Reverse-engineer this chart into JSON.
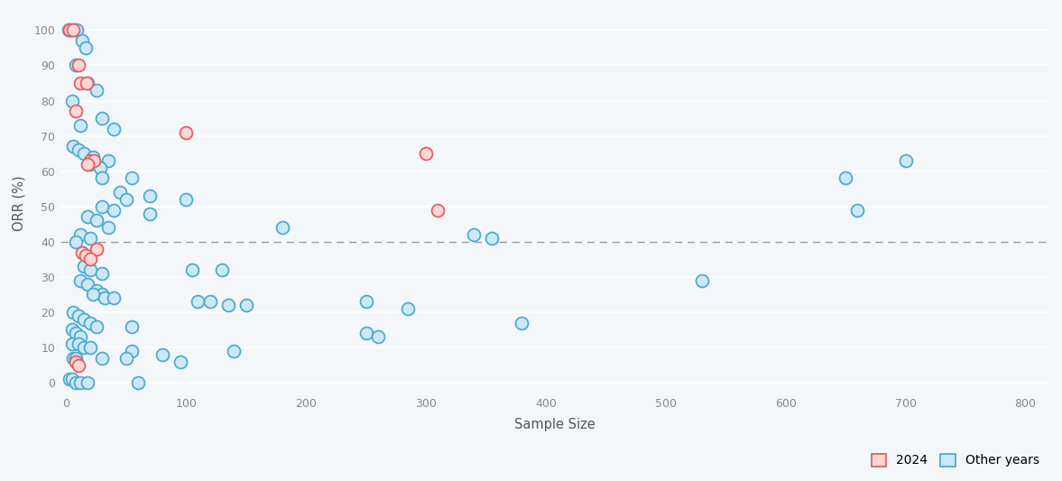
{
  "title": "",
  "xlabel": "Sample Size",
  "ylabel": "ORR (%)",
  "xlim": [
    -5,
    820
  ],
  "ylim": [
    -3,
    105
  ],
  "xticks": [
    0,
    100,
    200,
    300,
    400,
    500,
    600,
    700,
    800
  ],
  "yticks": [
    0,
    10,
    20,
    30,
    40,
    50,
    60,
    70,
    80,
    90,
    100
  ],
  "dashed_hline": 40,
  "bg_color": "#f4f7fa",
  "plot_bg_color": "#f4f7fa",
  "grid_color": "#ffffff",
  "legend_items": [
    "2024",
    "Other years"
  ],
  "legend_colors_face": [
    "#ffd6d6",
    "#cce8f5"
  ],
  "legend_colors_edge": [
    "#e06060",
    "#50aad0"
  ],
  "marker_size": 100,
  "points_2024": [
    [
      3,
      100
    ],
    [
      6,
      100
    ],
    [
      10,
      90
    ],
    [
      12,
      85
    ],
    [
      17,
      85
    ],
    [
      8,
      77
    ],
    [
      20,
      63
    ],
    [
      23,
      63
    ],
    [
      18,
      62
    ],
    [
      25,
      38
    ],
    [
      13,
      37
    ],
    [
      16,
      36
    ],
    [
      20,
      35
    ],
    [
      8,
      6
    ],
    [
      10,
      5
    ],
    [
      100,
      71
    ],
    [
      300,
      65
    ],
    [
      310,
      49
    ]
  ],
  "points_other": [
    [
      2,
      100
    ],
    [
      7,
      100
    ],
    [
      9,
      100
    ],
    [
      13,
      97
    ],
    [
      16,
      95
    ],
    [
      8,
      90
    ],
    [
      18,
      85
    ],
    [
      25,
      83
    ],
    [
      5,
      80
    ],
    [
      30,
      75
    ],
    [
      12,
      73
    ],
    [
      40,
      72
    ],
    [
      6,
      67
    ],
    [
      10,
      66
    ],
    [
      15,
      65
    ],
    [
      22,
      64
    ],
    [
      35,
      63
    ],
    [
      20,
      62
    ],
    [
      28,
      61
    ],
    [
      30,
      58
    ],
    [
      55,
      58
    ],
    [
      45,
      54
    ],
    [
      70,
      53
    ],
    [
      50,
      52
    ],
    [
      100,
      52
    ],
    [
      30,
      50
    ],
    [
      40,
      49
    ],
    [
      70,
      48
    ],
    [
      18,
      47
    ],
    [
      25,
      46
    ],
    [
      35,
      44
    ],
    [
      180,
      44
    ],
    [
      12,
      42
    ],
    [
      20,
      41
    ],
    [
      340,
      42
    ],
    [
      355,
      41
    ],
    [
      8,
      40
    ],
    [
      15,
      33
    ],
    [
      20,
      32
    ],
    [
      30,
      31
    ],
    [
      105,
      32
    ],
    [
      130,
      32
    ],
    [
      12,
      29
    ],
    [
      18,
      28
    ],
    [
      25,
      26
    ],
    [
      30,
      25
    ],
    [
      22,
      25
    ],
    [
      32,
      24
    ],
    [
      40,
      24
    ],
    [
      110,
      23
    ],
    [
      120,
      23
    ],
    [
      135,
      22
    ],
    [
      150,
      22
    ],
    [
      250,
      23
    ],
    [
      285,
      21
    ],
    [
      530,
      29
    ],
    [
      6,
      20
    ],
    [
      10,
      19
    ],
    [
      15,
      18
    ],
    [
      20,
      17
    ],
    [
      25,
      16
    ],
    [
      55,
      16
    ],
    [
      380,
      17
    ],
    [
      5,
      15
    ],
    [
      8,
      14
    ],
    [
      12,
      13
    ],
    [
      250,
      14
    ],
    [
      260,
      13
    ],
    [
      5,
      11
    ],
    [
      10,
      11
    ],
    [
      15,
      10
    ],
    [
      20,
      10
    ],
    [
      55,
      9
    ],
    [
      140,
      9
    ],
    [
      6,
      7
    ],
    [
      8,
      7
    ],
    [
      30,
      7
    ],
    [
      50,
      7
    ],
    [
      80,
      8
    ],
    [
      95,
      6
    ],
    [
      650,
      58
    ],
    [
      700,
      63
    ],
    [
      660,
      49
    ],
    [
      3,
      1
    ],
    [
      5,
      1
    ],
    [
      8,
      0
    ],
    [
      12,
      0
    ],
    [
      18,
      0
    ],
    [
      60,
      0
    ]
  ]
}
